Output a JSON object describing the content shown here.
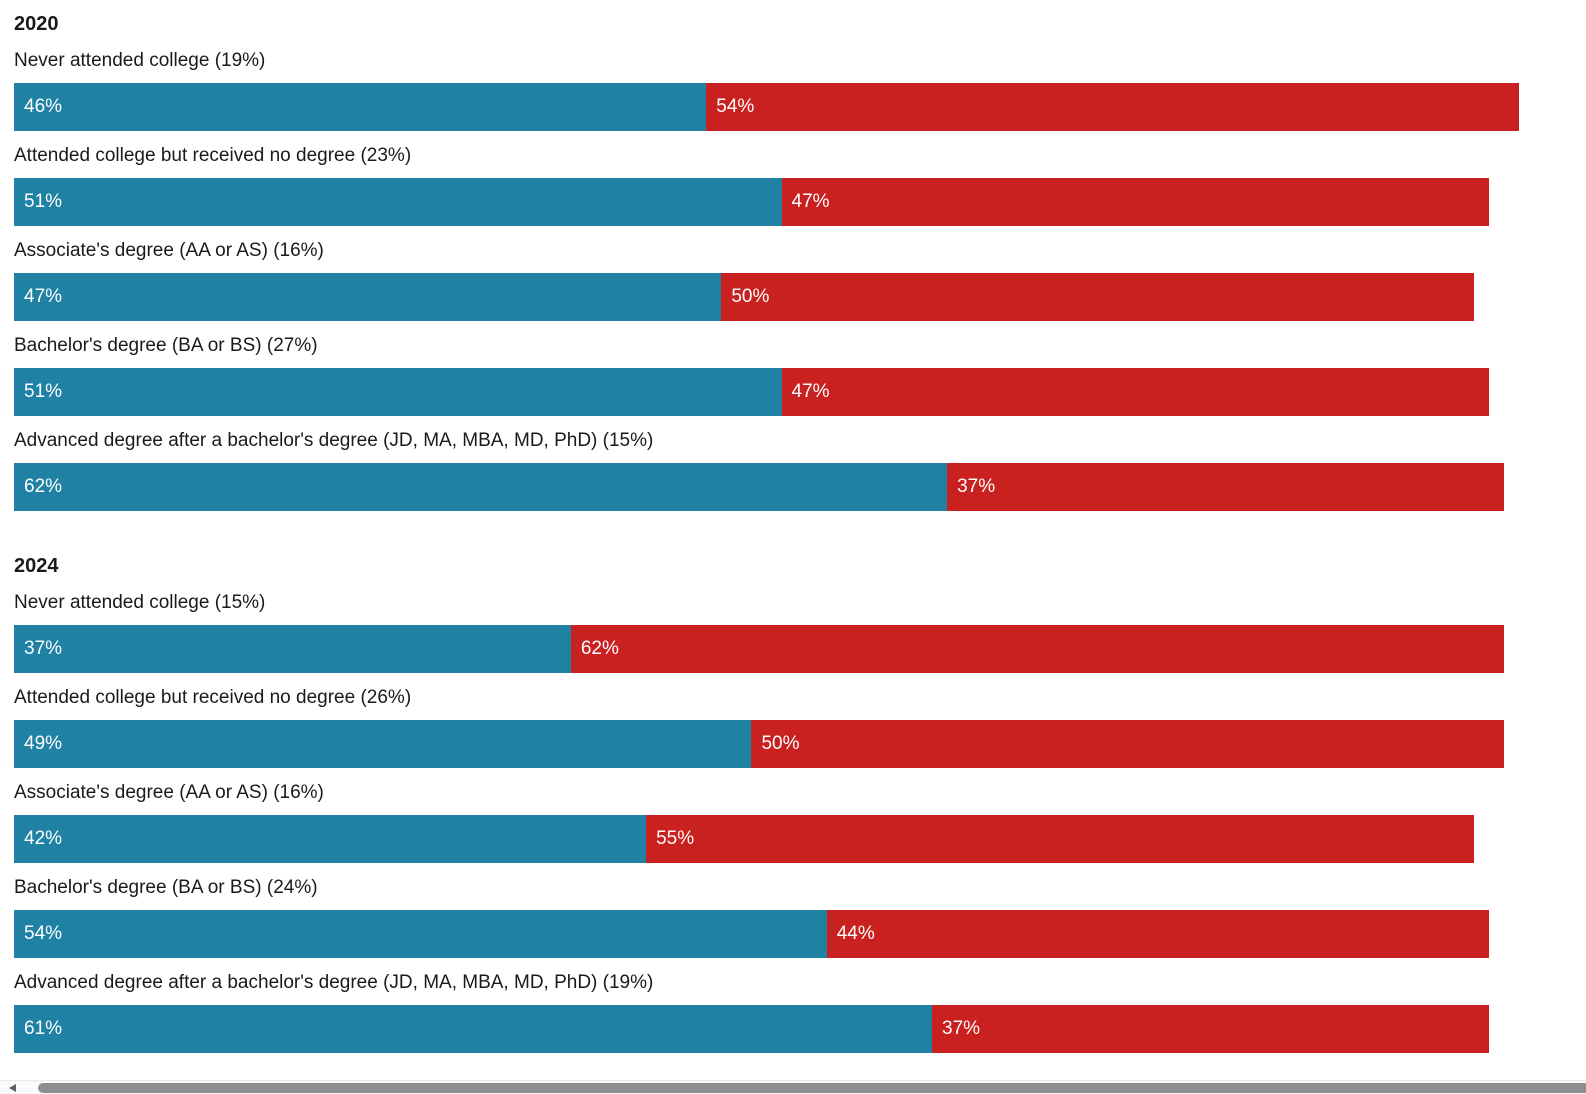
{
  "chart_data": {
    "type": "bar",
    "subtype": "horizontal-stacked",
    "unit": "%",
    "legend": "none",
    "colors": {
      "blue_segment": "#1f81a3",
      "red_segment": "#c92120",
      "value_text": "#ffffff",
      "label_text": "#1a1a1a"
    },
    "axis_range": [
      0,
      100
    ],
    "sections": [
      {
        "label": "2020",
        "rows": [
          {
            "category": "Never attended college (19%)",
            "blue": 46,
            "red": 54
          },
          {
            "category": "Attended college but received no degree (23%)",
            "blue": 51,
            "red": 47
          },
          {
            "category": "Associate's degree (AA or AS) (16%)",
            "blue": 47,
            "red": 50
          },
          {
            "category": "Bachelor's degree (BA or BS) (27%)",
            "blue": 51,
            "red": 47
          },
          {
            "category": "Advanced degree after a bachelor's degree (JD, MA, MBA, MD, PhD) (15%)",
            "blue": 62,
            "red": 37
          }
        ]
      },
      {
        "label": "2024",
        "rows": [
          {
            "category": "Never attended college (15%)",
            "blue": 37,
            "red": 62
          },
          {
            "category": "Attended college but received no degree (26%)",
            "blue": 49,
            "red": 50
          },
          {
            "category": "Associate's degree (AA or AS) (16%)",
            "blue": 42,
            "red": 55
          },
          {
            "category": "Bachelor's degree (BA or BS) (24%)",
            "blue": 54,
            "red": 44
          },
          {
            "category": "Advanced degree after a bachelor's degree (JD, MA, MBA, MD, PhD) (19%)",
            "blue": 61,
            "red": 37
          }
        ]
      }
    ]
  }
}
